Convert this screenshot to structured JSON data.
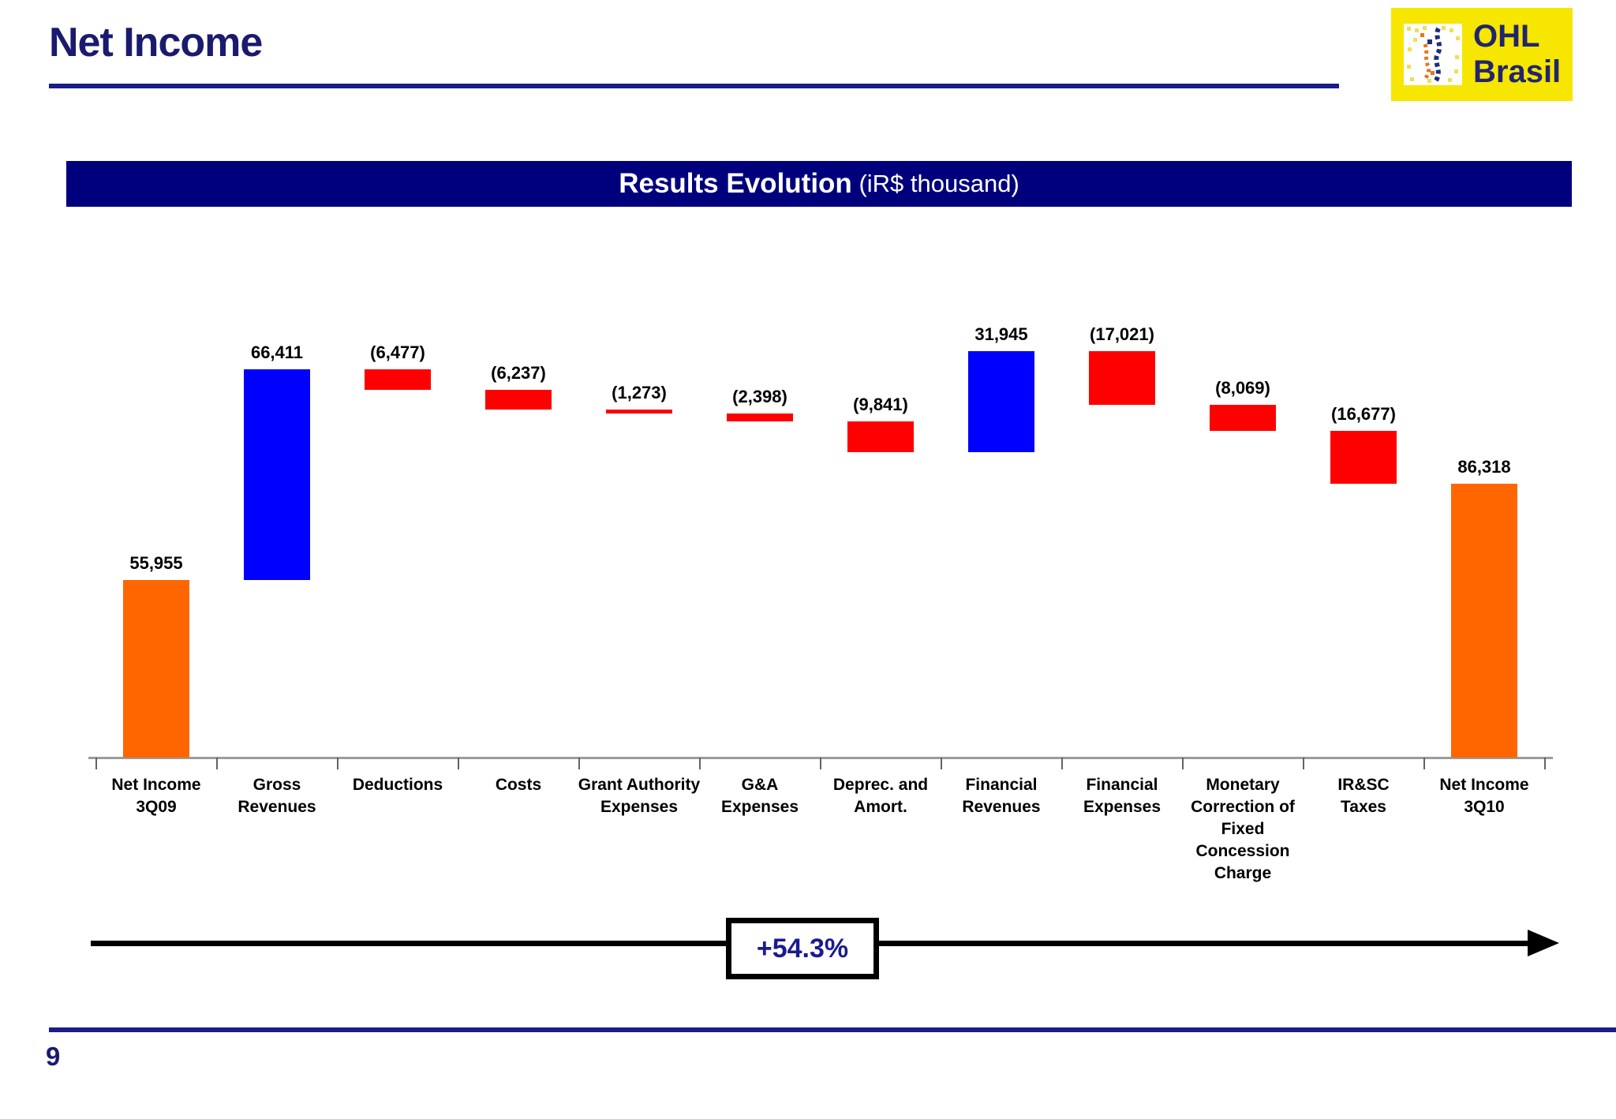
{
  "slide": {
    "title": "Net Income",
    "page_number": "9",
    "logo": {
      "line1": "OHL",
      "line2": "Brasil"
    },
    "chart_header": {
      "title": "Results Evolution",
      "unit": "(iR$ thousand)"
    },
    "growth_badge": "+54.3%"
  },
  "colors": {
    "navy_header": "#00007d",
    "navy_text": "#1a1a6e",
    "rule_navy": "#1b1b8a",
    "bar_total_orange": "#ff6600",
    "bar_increase_blue": "#0000ff",
    "bar_decrease_red": "#ff0000",
    "logo_yellow": "#f6e600",
    "label_black": "#000000"
  },
  "chart_data": {
    "type": "bar",
    "subtype": "waterfall",
    "title": "Results Evolution (iR$ thousand)",
    "unit": "R$ thousand",
    "legend": "none",
    "grid": false,
    "ylim": [
      0,
      130000
    ],
    "categories": [
      "Net Income 3Q09",
      "Gross Revenues",
      "Deductions",
      "Costs",
      "Grant Authority Expenses",
      "G&A Expenses",
      "Deprec. and Amort.",
      "Financial Revenues",
      "Financial Expenses",
      "Monetary Correction of Fixed Concession Charge",
      "IR&SC Taxes",
      "Net Income 3Q10"
    ],
    "category_label_lines": [
      [
        "Net Income",
        "3Q09"
      ],
      [
        "Gross",
        "Revenues"
      ],
      [
        "Deductions"
      ],
      [
        "Costs"
      ],
      [
        "Grant Authority",
        "Expenses"
      ],
      [
        "G&A",
        "Expenses"
      ],
      [
        "Deprec. and",
        "Amort."
      ],
      [
        "Financial",
        "Revenues"
      ],
      [
        "Financial",
        "Expenses"
      ],
      [
        "Monetary",
        "Correction of",
        "Fixed",
        "Concession",
        "Charge"
      ],
      [
        "IR&SC",
        "Taxes"
      ],
      [
        "Net Income",
        "3Q10"
      ]
    ],
    "series": [
      {
        "name": "Results Evolution",
        "values": [
          55955,
          66411,
          -6477,
          -6237,
          -1273,
          -2398,
          -9841,
          31945,
          -17021,
          -8069,
          -16677,
          86318
        ]
      }
    ],
    "value_labels": [
      "55,955",
      "66,411",
      "(6,477)",
      "(6,237)",
      "(1,273)",
      "(2,398)",
      "(9,841)",
      "31,945",
      "(17,021)",
      "(8,069)",
      "(16,677)",
      "86,318"
    ],
    "bar_roles": [
      "total",
      "increase",
      "decrease",
      "decrease",
      "decrease",
      "decrease",
      "decrease",
      "increase",
      "decrease",
      "decrease",
      "decrease",
      "total"
    ],
    "total_change_pct": "+54.3%"
  }
}
